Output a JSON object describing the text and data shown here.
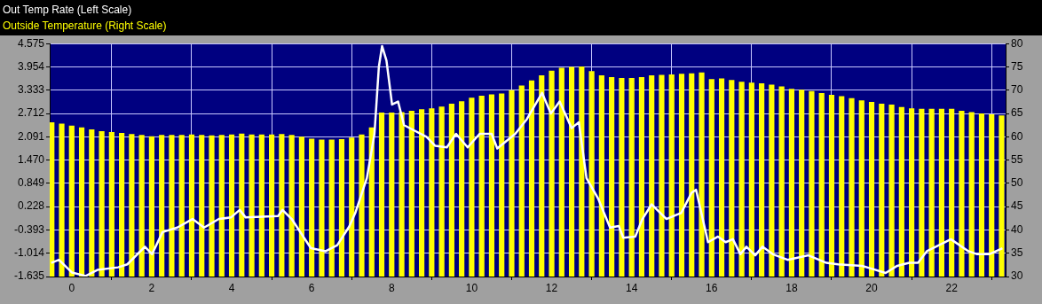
{
  "chart_data": {
    "type": "line",
    "legend": "top left",
    "grid": true,
    "marker": "none",
    "xlim": [
      -0.55,
      23.35
    ],
    "xticks": [
      0,
      2,
      4,
      6,
      8,
      10,
      12,
      14,
      16,
      18,
      20,
      22
    ],
    "ylim": [
      -1.635,
      4.575
    ],
    "yticks": [
      -1.635,
      -1.014,
      -0.393,
      0.228,
      0.849,
      {
        "value": 1.47,
        "label": "1.470"
      },
      2.091,
      2.712,
      3.333,
      3.954,
      4.575
    ],
    "y2lim": [
      30,
      80
    ],
    "y2ticks": [
      30,
      35,
      40,
      45,
      50,
      55,
      60,
      65,
      70,
      75,
      80
    ],
    "series": [
      {
        "name": "Out Temp Rate (Left Scale)",
        "color": "#ffffff",
        "x": [
          -0.51,
          -0.32,
          0.01,
          0.35,
          0.64,
          1.16,
          1.39,
          1.83,
          2.01,
          2.27,
          2.64,
          3.02,
          3.31,
          3.68,
          3.98,
          4.2,
          4.35,
          5.16,
          5.27,
          5.5,
          5.98,
          6.35,
          6.64,
          6.94,
          7.09,
          7.38,
          7.57,
          7.68,
          7.76,
          7.87,
          8.01,
          8.16,
          8.31,
          8.87,
          9.09,
          9.38,
          9.61,
          9.9,
          10.2,
          10.5,
          10.64,
          11.09,
          11.38,
          11.76,
          11.98,
          12.2,
          12.5,
          12.68,
          12.87,
          13.16,
          13.46,
          13.68,
          13.79,
          14.09,
          14.27,
          14.5,
          14.87,
          15.24,
          15.5,
          15.61,
          15.91,
          16.16,
          16.35,
          16.53,
          16.72,
          16.87,
          17.09,
          17.27,
          17.53,
          17.9,
          18.42,
          18.87,
          19.16,
          19.76,
          19.98,
          20.35,
          20.64,
          20.94,
          21.16,
          21.38,
          21.83,
          21.98,
          22.42,
          22.64,
          22.94,
          23.27
        ],
        "values": [
          -1.27,
          -1.19,
          -1.53,
          -1.62,
          -1.46,
          -1.39,
          -1.31,
          -0.84,
          -1.04,
          -0.45,
          -0.33,
          -0.1,
          -0.33,
          -0.1,
          -0.06,
          0.14,
          -0.06,
          -0.02,
          0.14,
          -0.1,
          -0.88,
          -0.96,
          -0.8,
          -0.3,
          0.06,
          0.99,
          2.17,
          3.96,
          4.51,
          4.12,
          2.95,
          3.03,
          2.4,
          2.09,
          1.85,
          1.81,
          2.17,
          1.81,
          2.17,
          2.17,
          1.78,
          2.17,
          2.56,
          3.26,
          2.71,
          3.03,
          2.32,
          2.48,
          0.99,
          0.45,
          -0.33,
          -0.29,
          -0.6,
          -0.57,
          -0.1,
          0.29,
          -0.1,
          0.06,
          0.6,
          0.68,
          -0.72,
          -0.57,
          -0.72,
          -0.64,
          -1.04,
          -0.84,
          -1.07,
          -0.84,
          -1.04,
          -1.19,
          -1.07,
          -1.27,
          -1.31,
          -1.35,
          -1.42,
          -1.54,
          -1.35,
          -1.27,
          -1.27,
          -0.96,
          -0.72,
          -0.64,
          -0.96,
          -1.04,
          -1.04,
          -0.88
        ]
      },
      {
        "name": "Outside Temperature (Right Scale)",
        "type": "bar",
        "axis": "y2",
        "color": "#ffff00",
        "x": [
          -0.5,
          -0.25,
          0,
          0.25,
          0.5,
          0.75,
          1,
          1.25,
          1.5,
          1.75,
          2,
          2.25,
          2.5,
          2.75,
          3,
          3.25,
          3.5,
          3.75,
          4,
          4.25,
          4.5,
          4.75,
          5,
          5.25,
          5.5,
          5.75,
          6,
          6.25,
          6.5,
          6.75,
          7,
          7.25,
          7.5,
          7.75,
          8,
          8.25,
          8.5,
          8.75,
          9,
          9.25,
          9.5,
          9.75,
          10,
          10.25,
          10.5,
          10.75,
          11,
          11.25,
          11.5,
          11.75,
          12,
          12.25,
          12.5,
          12.75,
          13,
          13.25,
          13.5,
          13.75,
          14,
          14.25,
          14.5,
          14.75,
          15,
          15.25,
          15.5,
          15.75,
          16,
          16.25,
          16.5,
          16.75,
          17,
          17.25,
          17.5,
          17.75,
          18,
          18.25,
          18.5,
          18.75,
          19,
          19.25,
          19.5,
          19.75,
          20,
          20.25,
          20.5,
          20.75,
          21,
          21.25,
          21.5,
          21.75,
          22,
          22.25,
          22.5,
          22.75,
          23,
          23.25
        ],
        "values": [
          63.1,
          62.8,
          62.4,
          62.0,
          61.6,
          61.2,
          61.0,
          60.8,
          60.6,
          60.4,
          60.1,
          60.4,
          60.4,
          60.4,
          60.5,
          60.4,
          60.3,
          60.4,
          60.5,
          60.7,
          60.5,
          60.5,
          60.5,
          60.6,
          60.4,
          60.0,
          59.6,
          59.4,
          59.4,
          59.5,
          59.8,
          60.5,
          62.0,
          65.2,
          65.2,
          65.3,
          65.6,
          65.9,
          66.1,
          66.5,
          67.1,
          67.6,
          68.4,
          68.8,
          69.1,
          69.3,
          70.0,
          71.0,
          72.1,
          73.2,
          74.2,
          74.8,
          75.0,
          75.1,
          74.1,
          73.2,
          72.8,
          72.6,
          72.6,
          72.8,
          73.2,
          73.3,
          73.4,
          73.5,
          73.6,
          73.8,
          72.4,
          72.5,
          72.2,
          71.8,
          71.6,
          71.5,
          71.2,
          70.8,
          70.3,
          70.1,
          69.8,
          69.4,
          69.0,
          68.7,
          68.3,
          67.8,
          67.5,
          67.1,
          66.9,
          66.4,
          66.1,
          66.0,
          66.0,
          66.0,
          66.0,
          65.6,
          65.3,
          65.0,
          64.8,
          64.6
        ]
      }
    ]
  }
}
